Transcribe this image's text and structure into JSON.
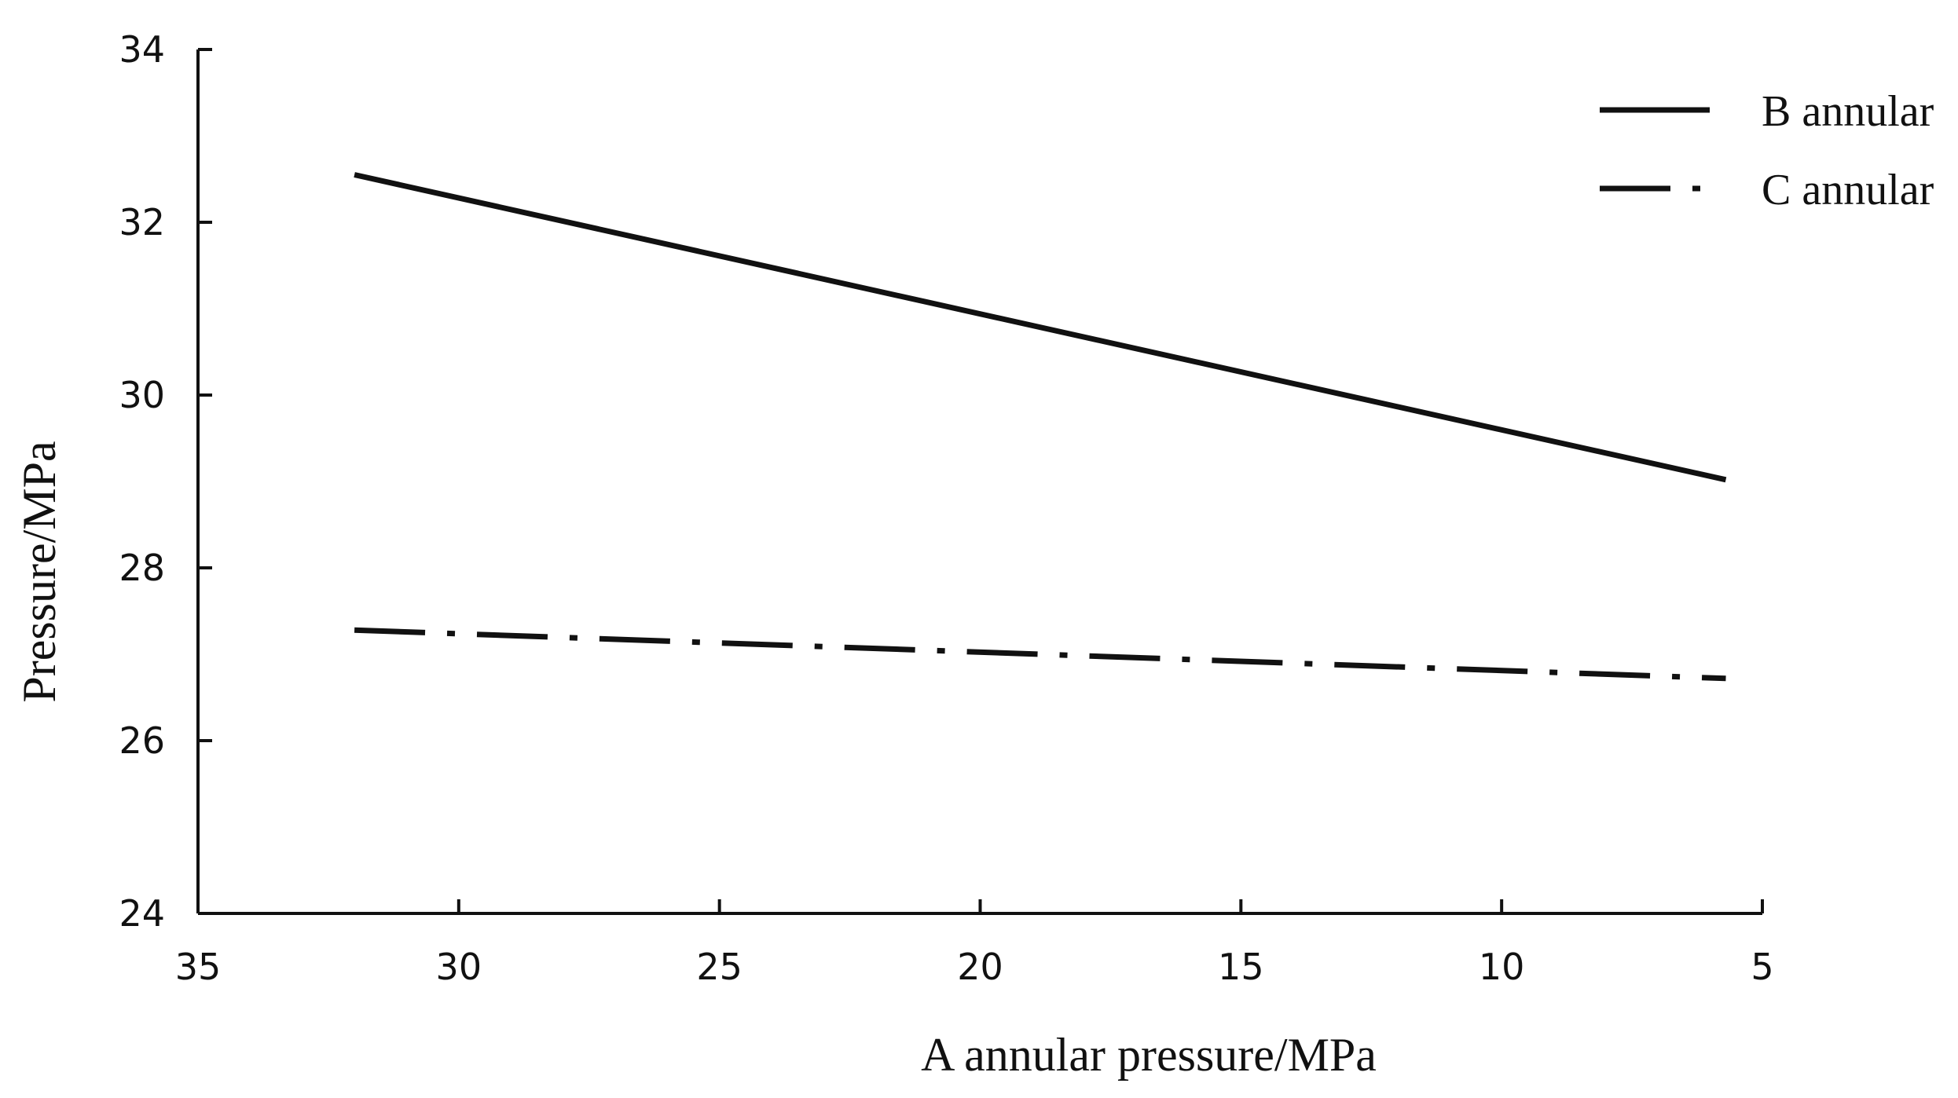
{
  "chart_data": {
    "type": "line",
    "xlabel": "A annular pressure/MPa",
    "ylabel": "Pressure/MPa",
    "xlim": [
      35,
      5
    ],
    "ylim": [
      24,
      34
    ],
    "x_reversed": true,
    "xticks": [
      35,
      30,
      25,
      20,
      15,
      10,
      5
    ],
    "yticks": [
      24,
      26,
      28,
      30,
      32,
      34
    ],
    "legend_position": "top-right",
    "grid": false,
    "series": [
      {
        "name": "B annular",
        "line_style": "solid",
        "color": "#111111",
        "x": [
          32,
          5.7
        ],
        "y": [
          32.55,
          29.02
        ]
      },
      {
        "name": "C annular",
        "line_style": "dash-dot",
        "color": "#111111",
        "x": [
          32,
          5.7
        ],
        "y": [
          27.28,
          26.72
        ]
      }
    ]
  }
}
